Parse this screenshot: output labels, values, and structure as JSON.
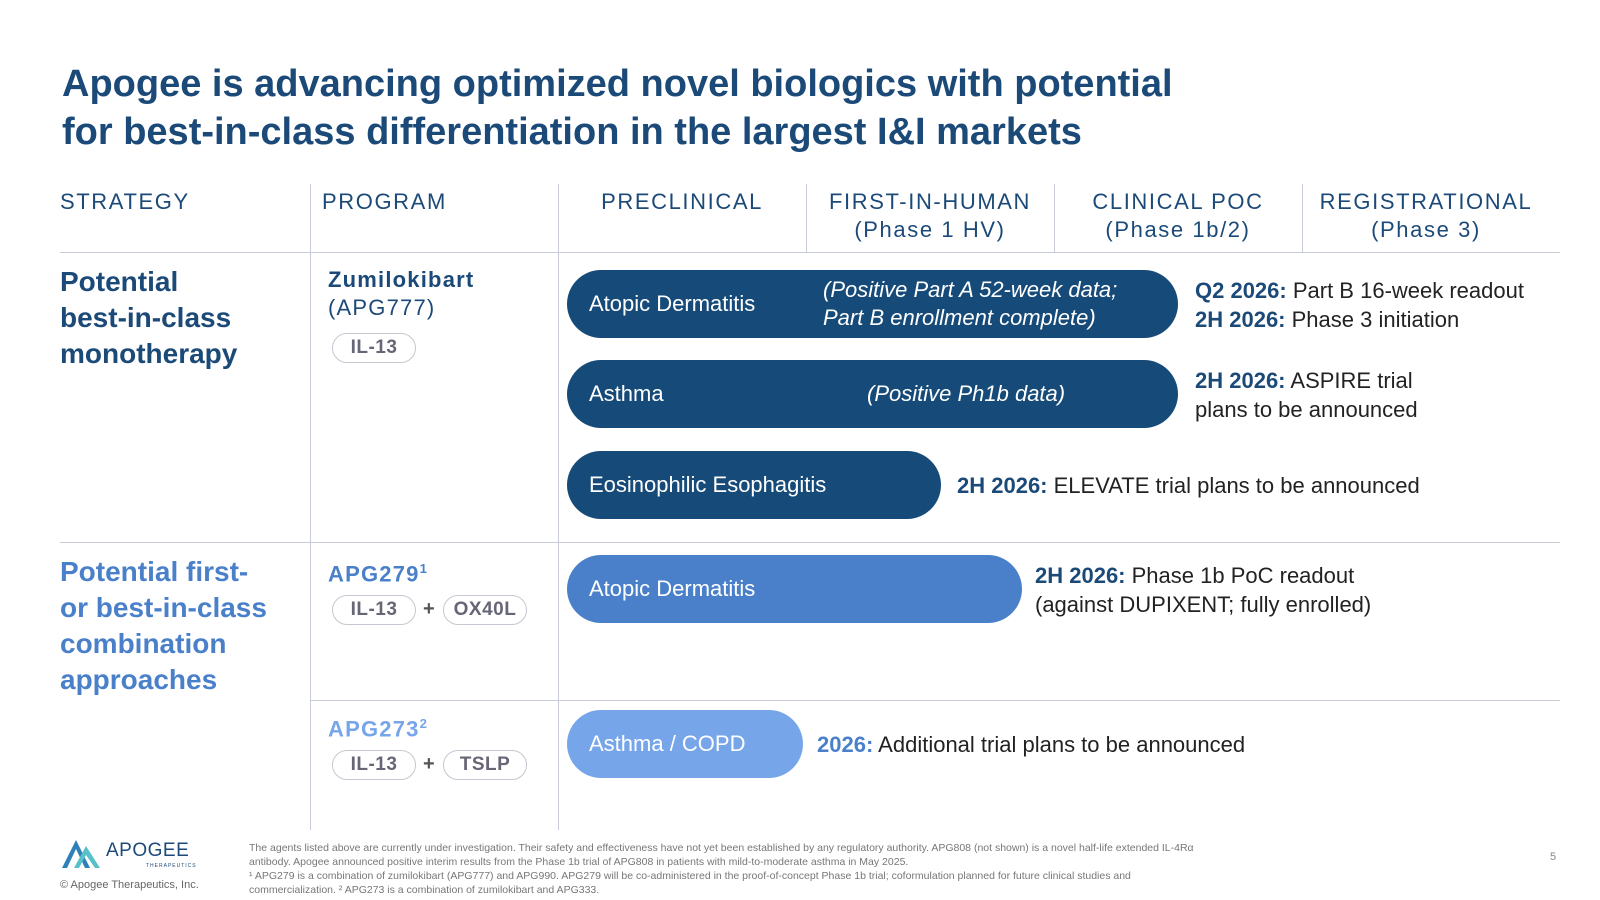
{
  "title": {
    "line1": "Apogee is advancing optimized novel biologics with potential",
    "line2": "for best-in-class differentiation in the largest I&I markets"
  },
  "columns": {
    "strategy": "STRATEGY",
    "program": "PROGRAM",
    "preclinical": "PRECLINICAL",
    "first_in_human": "FIRST-IN-HUMAN",
    "first_in_human_sub": "(Phase 1 HV)",
    "clinical_poc": "CLINICAL POC",
    "clinical_poc_sub": "(Phase 1b/2)",
    "registrational": "REGISTRATIONAL",
    "registrational_sub": "(Phase 3)"
  },
  "strategies": {
    "mono": [
      "Potential",
      "best-in-class",
      "monotherapy"
    ],
    "combo": [
      "Potential first-",
      "or best-in-class",
      "combination",
      "approaches"
    ]
  },
  "programs": {
    "zumi": {
      "name": "Zumilokibart",
      "code": "(APG777)",
      "targets": [
        "IL-13"
      ]
    },
    "apg279": {
      "name": "APG279",
      "sup": "1",
      "targets": [
        "IL-13",
        "OX40L"
      ],
      "plus": "+"
    },
    "apg273": {
      "name": "APG273",
      "sup": "2",
      "targets": [
        "IL-13",
        "TSLP"
      ],
      "plus": "+"
    }
  },
  "bars": {
    "zumi_ad": {
      "label": "Atopic Dermatitis",
      "note1": "(Positive Part A 52-week data;",
      "note2": "Part B enrollment complete)",
      "ms1_bold": "Q2 2026:",
      "ms1_text": " Part B 16-week readout",
      "ms2_bold": "2H 2026:",
      "ms2_text": " Phase 3 initiation"
    },
    "zumi_asthma": {
      "label": "Asthma",
      "note1": "(Positive Ph1b data)",
      "ms1_bold": "2H 2026:",
      "ms1_text": " ASPIRE trial",
      "ms2_text": "plans to be announced"
    },
    "zumi_eoe": {
      "label": "Eosinophilic Esophagitis",
      "ms1_bold": "2H 2026:",
      "ms1_text": " ELEVATE trial plans to be announced"
    },
    "apg279_ad": {
      "label": "Atopic Dermatitis",
      "ms1_bold": "2H 2026:",
      "ms1_text": " Phase 1b PoC readout",
      "ms2_text": "(against DUPIXENT; fully enrolled)"
    },
    "apg273_asthma": {
      "label": "Asthma / COPD",
      "ms1_bold": "2026:",
      "ms1_text": " Additional trial plans to be announced"
    }
  },
  "footer": {
    "logo_word": "APOGEE",
    "logo_sub": "THERAPEUTICS",
    "copyright": "© Apogee Therapeutics, Inc.",
    "disclaimer1": "The agents listed above are currently under investigation. Their safety and effectiveness have not yet been established by any regulatory authority. APG808 (not shown) is a novel half-life extended IL-4Rα",
    "disclaimer2": "antibody. Apogee announced positive interim results from the Phase 1b trial of APG808 in patients with mild-to-moderate asthma in May 2025.",
    "disclaimer3": "¹ APG279 is a combination of zumilokibart (APG777) and APG990. APG279 will be co-administered in the proof-of-concept Phase 1b trial; coformulation planned for future clinical studies and",
    "disclaimer4": "commercialization. ² APG273 is a combination of zumilokibart and APG333.",
    "page_number": "5"
  },
  "colors": {
    "navy": "#1c4a78",
    "bar_dark": "#164a78",
    "bar_mid": "#4a80ca",
    "bar_light": "#77a5ea",
    "light_blue_text": "#4a80ca"
  }
}
